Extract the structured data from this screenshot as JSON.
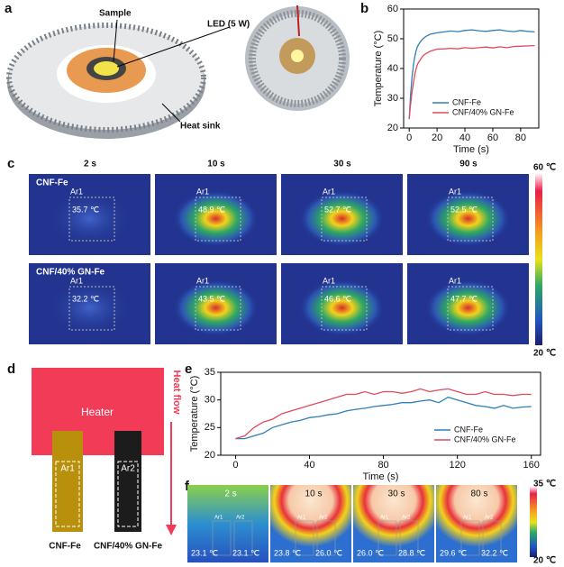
{
  "panel_labels": [
    "a",
    "b",
    "c",
    "d",
    "e",
    "f"
  ],
  "panel_a": {
    "labels": [
      "Sample",
      "LED (5 W)",
      "Heat sink"
    ]
  },
  "chart_data": [
    {
      "type": "line",
      "x_label": "Time (s)",
      "y_label": "Temperature (°C)",
      "x": [
        0,
        1,
        2,
        3,
        4,
        5,
        6,
        8,
        10,
        12,
        15,
        20,
        25,
        30,
        35,
        40,
        45,
        50,
        55,
        60,
        65,
        70,
        75,
        80,
        85,
        90
      ],
      "series": [
        {
          "name": "CNF-Fe",
          "color": "#2f7fb8",
          "values": [
            23,
            31,
            37,
            41,
            44,
            46,
            47.5,
            49,
            50,
            50.8,
            51.5,
            52,
            52.3,
            52.6,
            52.4,
            52.8,
            53,
            52.7,
            52.5,
            52.8,
            53,
            52.6,
            52.4,
            52.8,
            52.5,
            52.3
          ]
        },
        {
          "name": "CNF/40% GN-Fe",
          "color": "#e04a5a",
          "values": [
            23,
            28,
            32,
            35,
            38,
            40,
            41.5,
            43,
            44.3,
            45,
            45.8,
            46.5,
            46.6,
            46.8,
            46.6,
            47,
            46.8,
            47,
            47.2,
            46.9,
            47.3,
            47,
            47.4,
            47.5,
            47.6,
            47.7
          ]
        }
      ],
      "xlim": [
        -4,
        93
      ],
      "ylim": [
        20,
        60
      ],
      "xticks": [
        0,
        20,
        40,
        60,
        80
      ],
      "yticks": [
        20,
        30,
        40,
        50,
        60
      ],
      "legend": "lower right"
    },
    {
      "type": "line",
      "x_label": "Time (s)",
      "y_label": "Temperature (°C)",
      "x": [
        0,
        5,
        10,
        15,
        20,
        25,
        30,
        35,
        40,
        45,
        50,
        55,
        60,
        65,
        70,
        75,
        80,
        85,
        90,
        95,
        100,
        105,
        110,
        115,
        120,
        125,
        130,
        135,
        140,
        145,
        150,
        155,
        160
      ],
      "series": [
        {
          "name": "CNF-Fe",
          "color": "#2f7fb8",
          "values": [
            23,
            23,
            23.5,
            24,
            25,
            25.5,
            26,
            26.3,
            26.8,
            27,
            27.3,
            27.5,
            28,
            28.3,
            28.5,
            28.8,
            29,
            29.2,
            29.5,
            29.5,
            29.8,
            30,
            29.5,
            30.5,
            30,
            29.5,
            29,
            28.8,
            28.5,
            29,
            28.5,
            28.7,
            28.8
          ]
        },
        {
          "name": "CNF/40% GN-Fe",
          "color": "#e04a5a",
          "values": [
            23,
            23.5,
            25,
            26,
            26.5,
            27.5,
            28,
            28.5,
            29,
            29.5,
            30,
            30.5,
            31,
            31,
            31.5,
            31,
            31.5,
            31.5,
            31.2,
            31.5,
            32,
            31.5,
            31.8,
            32,
            31.5,
            31,
            31,
            31.5,
            31,
            31,
            30.8,
            31,
            31
          ]
        }
      ],
      "xlim": [
        -8,
        165
      ],
      "ylim": [
        20,
        35
      ],
      "xticks": [
        0,
        40,
        80,
        120,
        160
      ],
      "yticks": [
        20,
        25,
        30,
        35
      ],
      "legend": "lower right"
    }
  ],
  "panel_c": {
    "columns": [
      "2 s",
      "10 s",
      "30 s",
      "90 s"
    ],
    "rows": [
      {
        "name": "CNF-Fe",
        "region": "Ar1",
        "temps": [
          "35.7 ℃",
          "48.9 ℃",
          "52.7 ℃",
          "52.5 ℃"
        ]
      },
      {
        "name": "CNF/40% GN-Fe",
        "region": "Ar1",
        "temps": [
          "32.2 ℃",
          "43.5 ℃",
          "46.6 ℃",
          "47.7 ℃"
        ]
      }
    ],
    "colorbar": [
      "60 ℃",
      "20 ℃"
    ]
  },
  "panel_d": {
    "heater": "Heater",
    "heat_flow": "Heat flow",
    "samples": [
      {
        "region": "Ar1",
        "name": "CNF-Fe"
      },
      {
        "region": "Ar2",
        "name": "CNF/40% GN-Fe"
      }
    ]
  },
  "panel_f": {
    "times": [
      "2 s",
      "10 s",
      "30 s",
      "80 s"
    ],
    "regions": [
      "Ar1",
      "Ar2"
    ],
    "temps": [
      [
        "23.1 ℃",
        "23.1 ℃"
      ],
      [
        "23.8 ℃",
        "26.0 ℃"
      ],
      [
        "26.0 ℃",
        "28.8 ℃"
      ],
      [
        "29.6 ℃",
        "32.2 ℃"
      ]
    ],
    "colorbar": [
      "35 ℃",
      "20 ℃"
    ]
  }
}
